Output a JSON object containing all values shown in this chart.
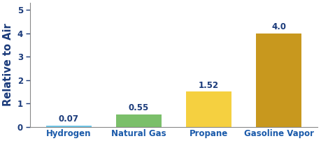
{
  "categories": [
    "Hydrogen",
    "Natural Gas",
    "Propane",
    "Gasoline Vapor"
  ],
  "values": [
    0.07,
    0.55,
    1.52,
    4.0
  ],
  "bar_colors": [
    "#6ec6e8",
    "#7bbf6a",
    "#f5d040",
    "#c8981e"
  ],
  "value_labels": [
    "0.07",
    "0.55",
    "1.52",
    "4.0"
  ],
  "ylabel": "Relative to Air",
  "ylim": [
    0,
    5.3
  ],
  "yticks": [
    0,
    1,
    2,
    3,
    4,
    5
  ],
  "label_color": "#1a3a7a",
  "xlabel_color": "#1a5aaa",
  "ylabel_color": "#1a3a7a",
  "tick_color": "#1a3a7a",
  "background_color": "#ffffff",
  "bar_width": 0.65,
  "label_fontsize": 8.5,
  "xlabel_fontsize": 8.5,
  "ylabel_fontsize": 10.5,
  "ytick_fontsize": 8.5
}
